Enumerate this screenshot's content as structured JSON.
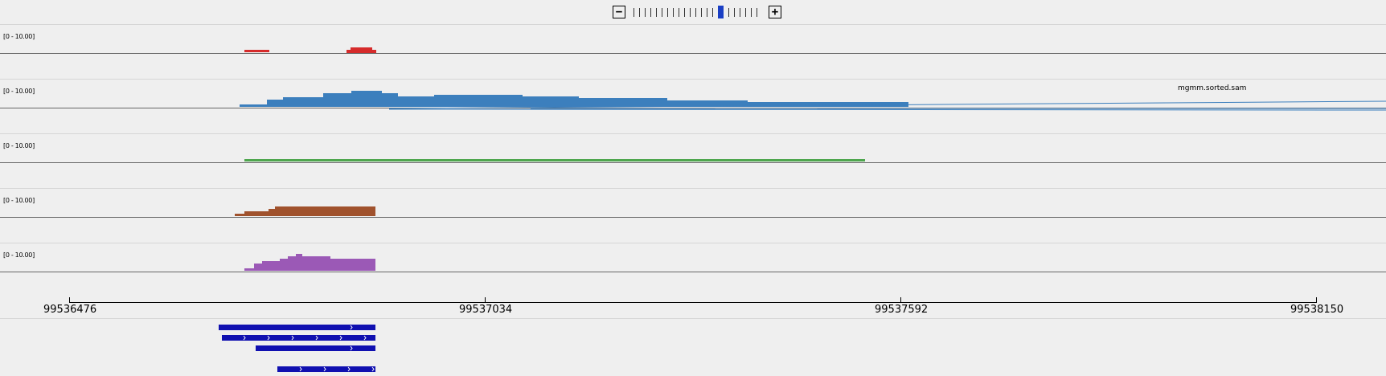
{
  "zoom": {
    "minus_label": "−",
    "plus_label": "+",
    "levels": 22,
    "current_level": 15
  },
  "tracks": [
    {
      "range": "[0 - 10.00]",
      "color": "#d62b2b"
    },
    {
      "range": "[0 - 10.00]",
      "color": "#3c7fbd",
      "name": "mgmm.sorted.sam"
    },
    {
      "range": "[0 - 10.00]",
      "color": "#4ea64e"
    },
    {
      "range": "[0 - 10.00]",
      "color": "#a0522d"
    },
    {
      "range": "[0 - 10.00]",
      "color": "#9b59b6"
    }
  ],
  "ruler": {
    "labels": [
      "99536476",
      "99537034",
      "99537592",
      "99538150"
    ]
  },
  "features": {
    "color": "#1010b0"
  }
}
